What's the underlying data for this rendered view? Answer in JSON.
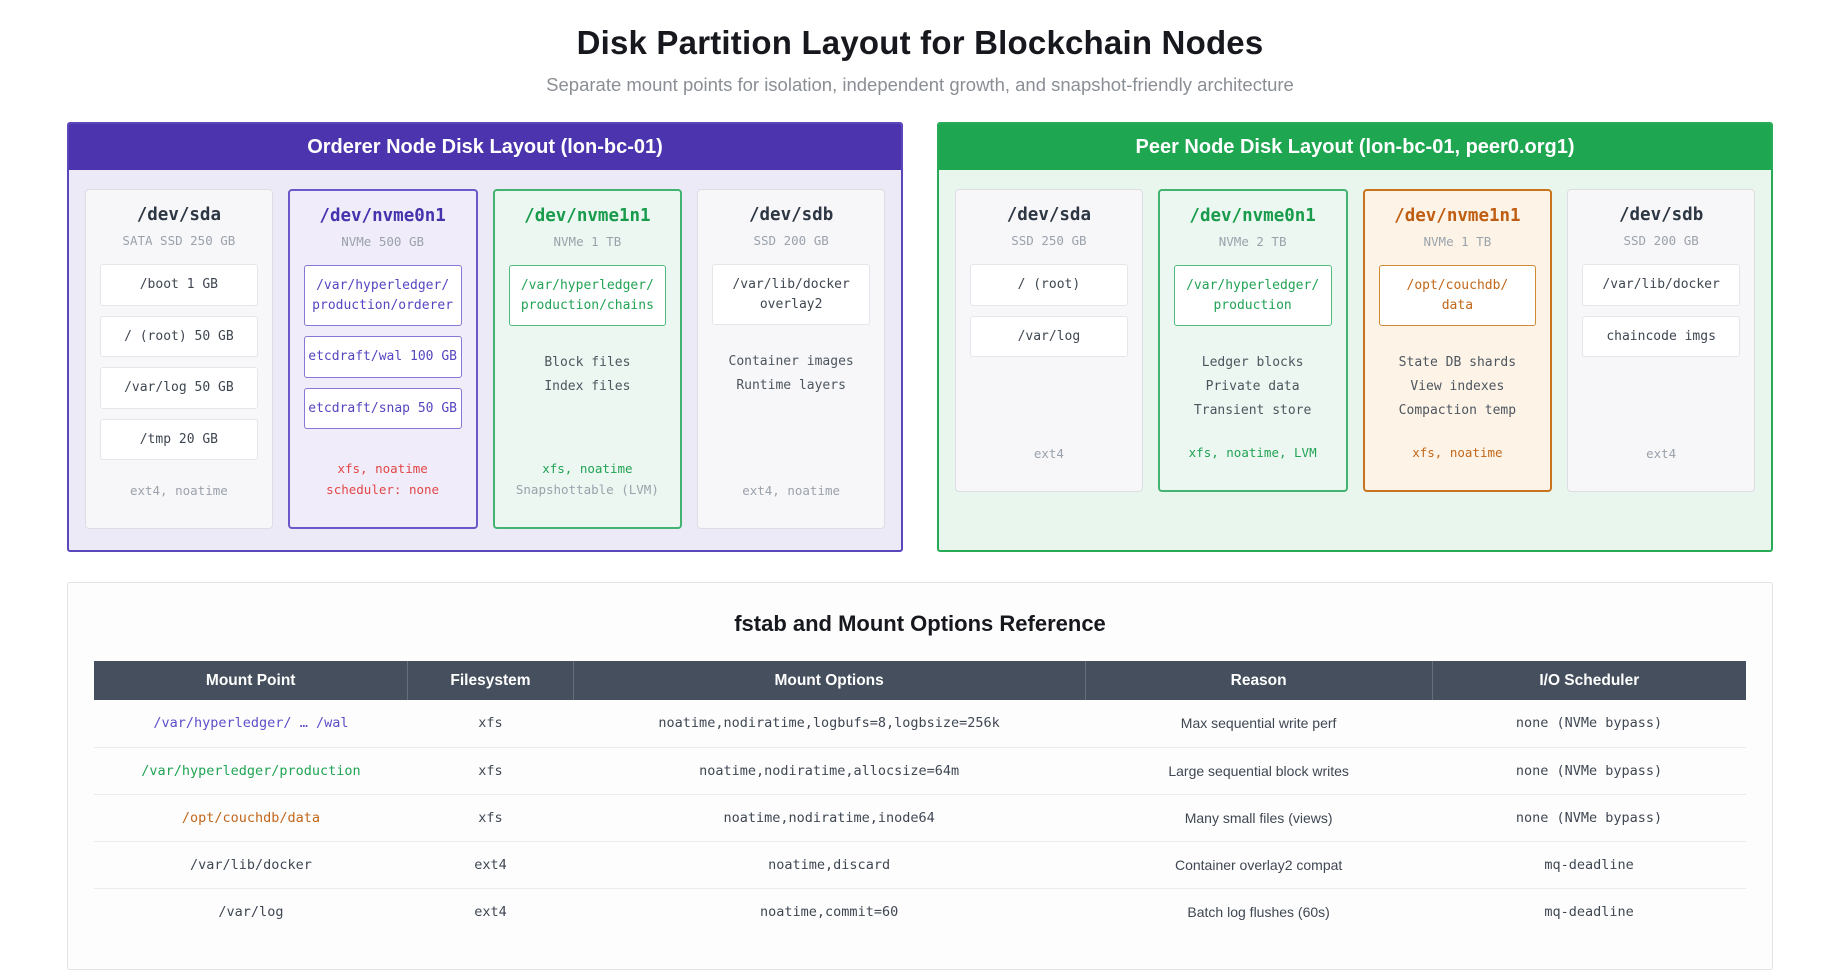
{
  "page": {
    "title": "Disk Partition Layout for Blockchain Nodes",
    "subtitle": "Separate mount points for isolation, independent growth, and snapshot-friendly architecture"
  },
  "colors": {
    "orderer_header": "#4b34ad",
    "peer_header": "#1ea750",
    "purple_accent": "#5446c0",
    "green_accent": "#22a355",
    "orange_accent": "#c2671a",
    "red_note": "#e14747",
    "table_header_bg": "#454f5d"
  },
  "orderer_panel": {
    "title": "Orderer Node Disk Layout (lon-bc-01)",
    "disks": [
      {
        "name": "/dev/sda",
        "spec": "SATA SSD 250 GB",
        "partitions": [
          "/boot 1 GB",
          "/ (root) 50 GB",
          "/var/log 50 GB",
          "/tmp 20 GB"
        ],
        "footers": [
          "ext4, noatime"
        ]
      },
      {
        "name": "/dev/nvme0n1",
        "spec": "NVMe 500 GB",
        "partitions": [
          "/var/hyperledger/\nproduction/orderer",
          "etcdraft/wal 100 GB",
          "etcdraft/snap 50 GB"
        ],
        "footers": [
          "xfs, noatime",
          "scheduler: none"
        ]
      },
      {
        "name": "/dev/nvme1n1",
        "spec": "NVMe 1 TB",
        "partitions": [
          "/var/hyperledger/\nproduction/chains"
        ],
        "items": [
          "Block files",
          "Index files"
        ],
        "footers": [
          "xfs, noatime",
          "Snapshottable (LVM)"
        ]
      },
      {
        "name": "/dev/sdb",
        "spec": "SSD 200 GB",
        "partitions": [
          "/var/lib/docker\noverlay2"
        ],
        "items": [
          "Container images",
          "Runtime layers"
        ],
        "footers": [
          "ext4, noatime"
        ]
      }
    ]
  },
  "peer_panel": {
    "title": "Peer Node Disk Layout (lon-bc-01, peer0.org1)",
    "disks": [
      {
        "name": "/dev/sda",
        "spec": "SSD 250 GB",
        "partitions": [
          "/ (root)",
          "/var/log"
        ],
        "footers": [
          "ext4"
        ]
      },
      {
        "name": "/dev/nvme0n1",
        "spec": "NVMe 2 TB",
        "partitions": [
          "/var/hyperledger/\nproduction"
        ],
        "items": [
          "Ledger blocks",
          "Private data",
          "Transient store"
        ],
        "footers": [
          "xfs, noatime, LVM"
        ]
      },
      {
        "name": "/dev/nvme1n1",
        "spec": "NVMe 1 TB",
        "partitions": [
          "/opt/couchdb/\ndata"
        ],
        "items": [
          "State DB shards",
          "View indexes",
          "Compaction temp"
        ],
        "footers": [
          "xfs, noatime"
        ]
      },
      {
        "name": "/dev/sdb",
        "spec": "SSD 200 GB",
        "partitions": [
          "/var/lib/docker",
          "chaincode imgs"
        ],
        "footers": [
          "ext4"
        ]
      }
    ]
  },
  "table": {
    "title": "fstab and Mount Options Reference",
    "headers": [
      "Mount Point",
      "Filesystem",
      "Mount Options",
      "Reason",
      "I/O Scheduler"
    ],
    "rows": [
      {
        "mount": "/var/hyperledger/ … /wal",
        "fs": "xfs",
        "options": "noatime,nodiratime,logbufs=8,logbsize=256k",
        "reason": "Max sequential write perf",
        "scheduler": "none (NVMe bypass)"
      },
      {
        "mount": "/var/hyperledger/production",
        "fs": "xfs",
        "options": "noatime,nodiratime,allocsize=64m",
        "reason": "Large sequential block writes",
        "scheduler": "none (NVMe bypass)"
      },
      {
        "mount": "/opt/couchdb/data",
        "fs": "xfs",
        "options": "noatime,nodiratime,inode64",
        "reason": "Many small files (views)",
        "scheduler": "none (NVMe bypass)"
      },
      {
        "mount": "/var/lib/docker",
        "fs": "ext4",
        "options": "noatime,discard",
        "reason": "Container overlay2 compat",
        "scheduler": "mq-deadline"
      },
      {
        "mount": "/var/log",
        "fs": "ext4",
        "options": "noatime,commit=60",
        "reason": "Batch log flushes (60s)",
        "scheduler": "mq-deadline"
      }
    ]
  }
}
